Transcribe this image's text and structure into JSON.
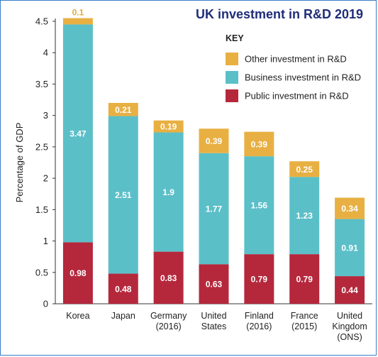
{
  "chart_data": {
    "type": "bar",
    "stacked": true,
    "title": "UK investment in R&D 2019",
    "ylabel": "Percentage of GDP",
    "ylim": [
      0,
      4.5
    ],
    "yticks": [
      "0",
      "0.5",
      "1",
      "1.5",
      "2",
      "2.5",
      "3",
      "3.5",
      "4",
      "4.5"
    ],
    "categories": [
      [
        "Korea"
      ],
      [
        "Japan"
      ],
      [
        "Germany",
        "(2016)"
      ],
      [
        "United",
        "States"
      ],
      [
        "Finland",
        "(2016)"
      ],
      [
        "France",
        "(2015)"
      ],
      [
        "United",
        "Kingdom",
        "(ONS)"
      ]
    ],
    "series": [
      {
        "name": "Public investment in R&D",
        "color": "#b5283c",
        "values": [
          0.98,
          0.48,
          0.83,
          0.63,
          0.79,
          0.79,
          0.44
        ],
        "labels": [
          "0.98",
          "0.48",
          "0.83",
          "0.63",
          "0.79",
          "0.79",
          "0.44"
        ]
      },
      {
        "name": "Business investment in R&D",
        "color": "#5bbfc8",
        "values": [
          3.47,
          2.51,
          1.9,
          1.77,
          1.56,
          1.23,
          0.91
        ],
        "labels": [
          "3.47",
          "2.51",
          "1.9",
          "1.77",
          "1.56",
          "1.23",
          "0.91"
        ]
      },
      {
        "name": "Other investment in R&D",
        "color": "#e8b042",
        "values": [
          0.1,
          0.21,
          0.19,
          0.39,
          0.39,
          0.25,
          0.34
        ],
        "labels": [
          "0.1",
          "0.21",
          "0.19",
          "0.39",
          "0.39",
          "0.25",
          "0.34"
        ]
      }
    ],
    "legend": {
      "title": "KEY",
      "placement": "top-right",
      "entries": [
        "Other investment in R&D",
        "Business investment in R&D",
        "Public investment in R&D"
      ]
    },
    "grid": false
  }
}
